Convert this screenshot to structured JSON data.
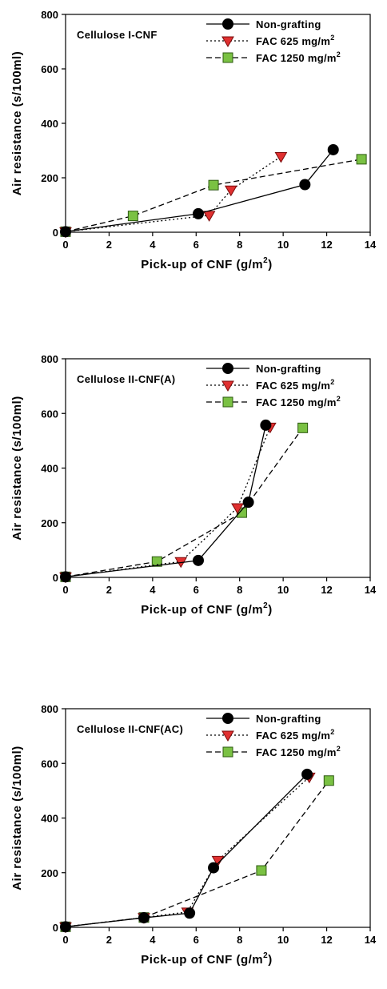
{
  "chart_data": [
    {
      "type": "line",
      "title": "Cellulose I-CNF",
      "xlabel": "Pick-up of CNF (g/m",
      "xlabel_sup": "2",
      "xlabel_end": ")",
      "ylabel": "Air resistance (s/100ml)",
      "xlim": [
        0,
        14
      ],
      "ylim": [
        0,
        800
      ],
      "xticks": [
        "0",
        "2",
        "4",
        "6",
        "8",
        "10",
        "12",
        "14"
      ],
      "yticks": [
        "0",
        "200",
        "400",
        "600",
        "800"
      ],
      "legend_position": "top-right",
      "series": [
        {
          "name": "Non-grafting",
          "unit": " mg/m",
          "sup": "",
          "marker": "circle",
          "color": "#000000",
          "line": "solid",
          "x": [
            0,
            6.1,
            11,
            12.3
          ],
          "y": [
            2,
            68,
            175,
            303
          ]
        },
        {
          "name": "FAC 625",
          "unit": " mg/m",
          "sup": "2",
          "marker": "triangle-down",
          "color": "#e03030",
          "line": "dotted",
          "x": [
            0,
            6.6,
            7.6,
            9.9
          ],
          "y": [
            2,
            62,
            155,
            278
          ]
        },
        {
          "name": "FAC 1250",
          "unit": " mg/m",
          "sup": "2",
          "marker": "square",
          "color": "#7ac143",
          "line": "dashed",
          "x": [
            0,
            3.1,
            6.8,
            13.6
          ],
          "y": [
            2,
            60,
            173,
            268
          ]
        }
      ]
    },
    {
      "type": "line",
      "title": "Cellulose II-CNF(A)",
      "xlabel": "Pick-up of CNF (g/m",
      "xlabel_sup": "2",
      "xlabel_end": ")",
      "ylabel": "Air resistance (s/100ml)",
      "xlim": [
        0,
        14
      ],
      "ylim": [
        0,
        800
      ],
      "xticks": [
        "0",
        "2",
        "4",
        "6",
        "8",
        "10",
        "12",
        "14"
      ],
      "yticks": [
        "0",
        "200",
        "400",
        "600",
        "800"
      ],
      "legend_position": "top-right",
      "series": [
        {
          "name": "Non-grafting",
          "unit": " mg/m",
          "sup": "",
          "marker": "circle",
          "color": "#000000",
          "line": "solid",
          "x": [
            0,
            6.1,
            8.4,
            9.2
          ],
          "y": [
            2,
            62,
            275,
            557
          ]
        },
        {
          "name": "FAC 625",
          "unit": " mg/m",
          "sup": "2",
          "marker": "triangle-down",
          "color": "#e03030",
          "line": "dotted",
          "x": [
            0,
            5.3,
            7.9,
            9.4
          ],
          "y": [
            2,
            58,
            255,
            550
          ]
        },
        {
          "name": "FAC 1250",
          "unit": " mg/m",
          "sup": "2",
          "marker": "square",
          "color": "#7ac143",
          "line": "dashed",
          "x": [
            0,
            4.2,
            8.1,
            10.9
          ],
          "y": [
            2,
            58,
            237,
            547
          ]
        }
      ]
    },
    {
      "type": "line",
      "title": "Cellulose II-CNF(AC)",
      "xlabel": "Pick-up of CNF (g/m",
      "xlabel_sup": "2",
      "xlabel_end": ")",
      "ylabel": "Air resistance (s/100ml)",
      "xlim": [
        0,
        14
      ],
      "ylim": [
        0,
        800
      ],
      "xticks": [
        "0",
        "2",
        "4",
        "6",
        "8",
        "10",
        "12",
        "14"
      ],
      "yticks": [
        "0",
        "200",
        "400",
        "600",
        "800"
      ],
      "legend_position": "top-right",
      "series": [
        {
          "name": "Non-grafting",
          "unit": " mg/m",
          "sup": "",
          "marker": "circle",
          "color": "#000000",
          "line": "solid",
          "x": [
            0,
            3.6,
            5.7,
            6.8,
            11.1
          ],
          "y": [
            2,
            35,
            52,
            218,
            560
          ]
        },
        {
          "name": "FAC 625",
          "unit": " mg/m",
          "sup": "2",
          "marker": "triangle-down",
          "color": "#e03030",
          "line": "dotted",
          "x": [
            0,
            3.6,
            5.6,
            7.0,
            11.2
          ],
          "y": [
            2,
            36,
            56,
            245,
            550
          ]
        },
        {
          "name": "FAC 1250",
          "unit": " mg/m",
          "sup": "2",
          "marker": "square",
          "color": "#7ac143",
          "line": "dashed",
          "x": [
            0,
            3.6,
            9.0,
            12.1
          ],
          "y": [
            2,
            36,
            208,
            537
          ]
        }
      ]
    }
  ]
}
